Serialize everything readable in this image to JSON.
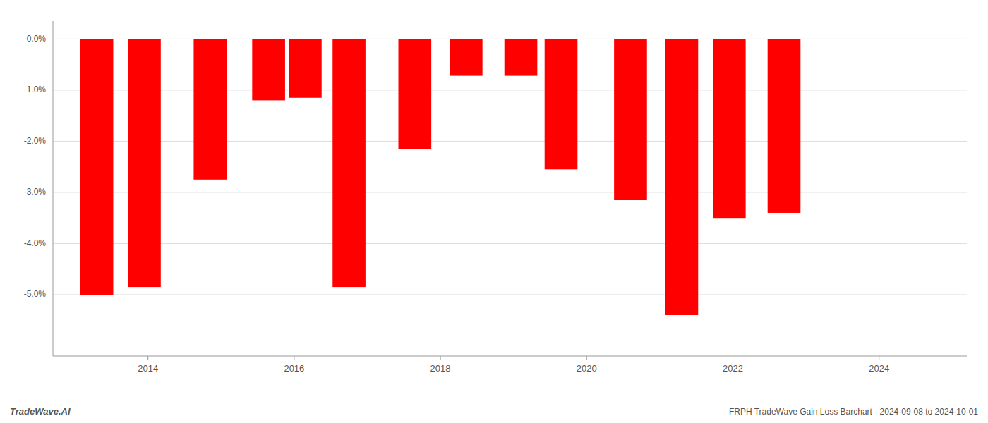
{
  "chart_data": {
    "type": "bar",
    "x": [
      2013.3,
      2013.95,
      2014.85,
      2015.65,
      2016.15,
      2016.75,
      2017.65,
      2018.35,
      2019.1,
      2019.65,
      2020.6,
      2021.3,
      2021.95,
      2022.7
    ],
    "values": [
      -5.0,
      -4.85,
      -2.75,
      -1.2,
      -1.15,
      -4.85,
      -2.15,
      -0.72,
      -0.72,
      -2.55,
      -3.15,
      -5.4,
      -3.5,
      -3.4
    ],
    "color": "#ff0000",
    "xlim": [
      2012.7,
      2025.2
    ],
    "xticks": [
      2014,
      2016,
      2018,
      2020,
      2022,
      2024
    ],
    "ylim": [
      -6.2,
      0.35
    ],
    "yticks": [
      {
        "value": 0.0,
        "label": "0.0%"
      },
      {
        "value": -1.0,
        "label": "-1.0%"
      },
      {
        "value": -2.0,
        "label": "-2.0%"
      },
      {
        "value": -3.0,
        "label": "-3.0%"
      },
      {
        "value": -4.0,
        "label": "-4.0%"
      },
      {
        "value": -5.0,
        "label": "-5.0%"
      }
    ],
    "grid": true,
    "annotations": [
      "TradeWave.AI",
      "FRPH TradeWave Gain Loss Barchart - 2024-09-08 to 2024-10-01"
    ]
  }
}
